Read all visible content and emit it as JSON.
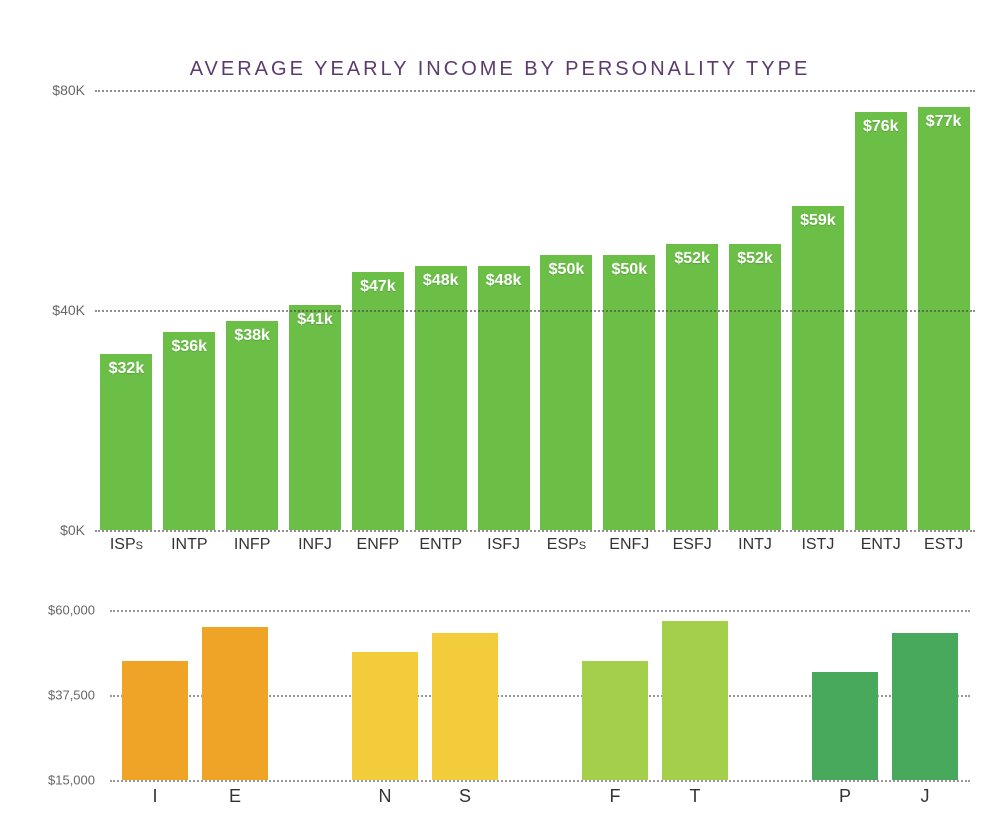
{
  "title": "AVERAGE YEARLY INCOME BY PERSONALITY TYPE",
  "main_chart": {
    "type": "bar",
    "bar_color": "#6bbf47",
    "value_text_color": "#ffffff",
    "grid_color": "#444444",
    "background_color": "#ffffff",
    "ylim": [
      0,
      80
    ],
    "yticks": [
      {
        "v": 0,
        "label": "$0K"
      },
      {
        "v": 40,
        "label": "$40K"
      },
      {
        "v": 80,
        "label": "$80K"
      }
    ],
    "bars": [
      {
        "label": "ISPs",
        "value": 32,
        "text": "$32k"
      },
      {
        "label": "INTP",
        "value": 36,
        "text": "$36k"
      },
      {
        "label": "INFP",
        "value": 38,
        "text": "$38k"
      },
      {
        "label": "INFJ",
        "value": 41,
        "text": "$41k"
      },
      {
        "label": "ENFP",
        "value": 47,
        "text": "$47k"
      },
      {
        "label": "ENTP",
        "value": 48,
        "text": "$48k"
      },
      {
        "label": "ISFJ",
        "value": 48,
        "text": "$48k"
      },
      {
        "label": "ESPs",
        "value": 50,
        "text": "$50k"
      },
      {
        "label": "ENFJ",
        "value": 50,
        "text": "$50k"
      },
      {
        "label": "ESFJ",
        "value": 52,
        "text": "$52k"
      },
      {
        "label": "INTJ",
        "value": 52,
        "text": "$52k"
      },
      {
        "label": "ISTJ",
        "value": 59,
        "text": "$59k"
      },
      {
        "label": "ENTJ",
        "value": 76,
        "text": "$76k"
      },
      {
        "label": "ESTJ",
        "value": 77,
        "text": "$77k"
      }
    ]
  },
  "small_charts": {
    "type": "grouped-bar",
    "ylim": [
      15000,
      60000
    ],
    "yticks": [
      {
        "v": 15000,
        "label": "$15,000"
      },
      {
        "v": 37500,
        "label": "$37,500"
      },
      {
        "v": 60000,
        "label": "$60,000"
      }
    ],
    "groups": [
      {
        "bars": [
          {
            "label": "I",
            "value": 46500,
            "color": "#f0a427"
          },
          {
            "label": "E",
            "value": 55500,
            "color": "#f0a427"
          }
        ]
      },
      {
        "bars": [
          {
            "label": "N",
            "value": 49000,
            "color": "#f2cc3a"
          },
          {
            "label": "S",
            "value": 54000,
            "color": "#f2cc3a"
          }
        ]
      },
      {
        "bars": [
          {
            "label": "F",
            "value": 46500,
            "color": "#a3cf4b"
          },
          {
            "label": "T",
            "value": 57000,
            "color": "#a3cf4b"
          }
        ]
      },
      {
        "bars": [
          {
            "label": "P",
            "value": 43500,
            "color": "#48a85b"
          },
          {
            "label": "J",
            "value": 54000,
            "color": "#48a85b"
          }
        ]
      }
    ]
  }
}
